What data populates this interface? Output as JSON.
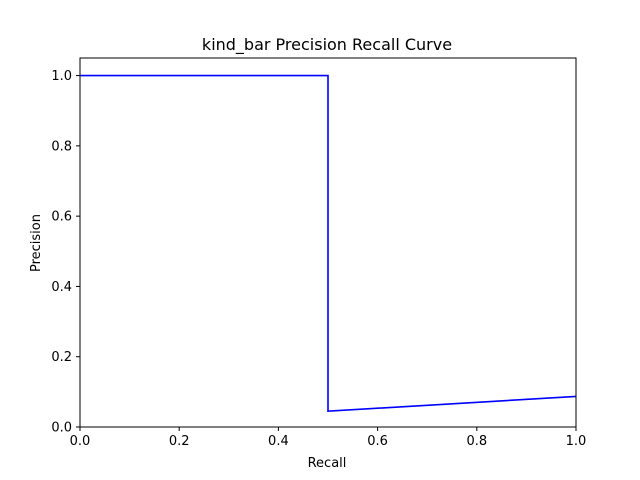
{
  "chart_data": {
    "type": "line",
    "title": "kind_bar Precision Recall Curve",
    "xlabel": "Recall",
    "ylabel": "Precision",
    "xlim": [
      0.0,
      1.0
    ],
    "ylim": [
      0.0,
      1.05
    ],
    "xticks": [
      "0.0",
      "0.2",
      "0.4",
      "0.6",
      "0.8",
      "1.0"
    ],
    "xtick_values": [
      0.0,
      0.2,
      0.4,
      0.6,
      0.8,
      1.0
    ],
    "yticks": [
      "0.0",
      "0.2",
      "0.4",
      "0.6",
      "0.8",
      "1.0"
    ],
    "ytick_values": [
      0.0,
      0.2,
      0.4,
      0.6,
      0.8,
      1.0
    ],
    "grid": false,
    "series": [
      {
        "color": "#0000ff",
        "x": [
          0.0,
          0.5,
          0.5,
          1.0
        ],
        "y": [
          1.0,
          1.0,
          0.045,
          0.087
        ]
      }
    ]
  }
}
